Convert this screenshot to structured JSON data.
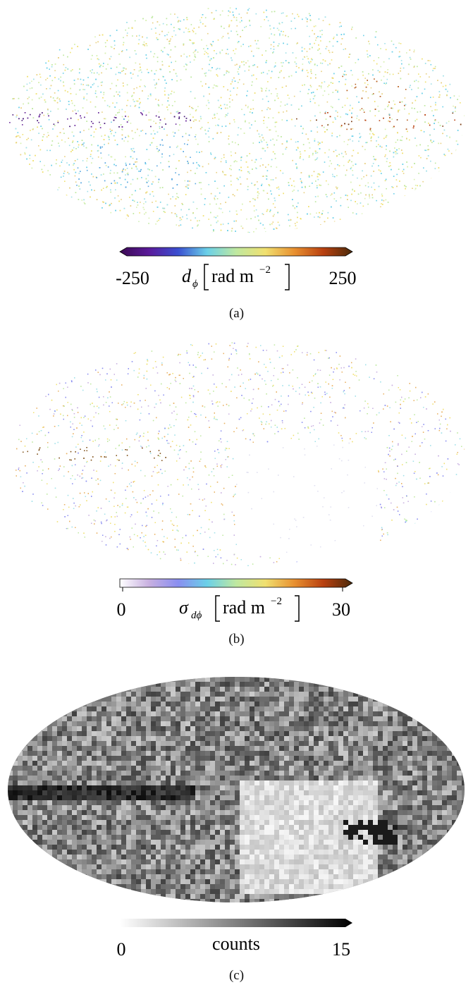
{
  "panels": [
    {
      "id": "a",
      "caption": "(a)",
      "colormap": "diverging",
      "colorbar": {
        "min_label": "-250",
        "max_label": "250",
        "symbol": "d",
        "subscript": "ϕ",
        "unit": "rad m",
        "unit_exp": "−2",
        "stops": [
          "#3b0a52",
          "#5a1a9a",
          "#3a4fd0",
          "#6ad0e8",
          "#bfe8a0",
          "#f0e070",
          "#e89030",
          "#b84010",
          "#4a2a0a"
        ],
        "extend": "both"
      }
    },
    {
      "id": "b",
      "caption": "(b)",
      "colormap": "sequential",
      "colorbar": {
        "min_label": "0",
        "max_label": "30",
        "symbol": "σ",
        "subscript": "dϕ",
        "unit": "rad m",
        "unit_exp": "−2",
        "stops": [
          "#ffffff",
          "#c8b0e0",
          "#8a8ef0",
          "#6ad0e8",
          "#bfe8a0",
          "#f0e070",
          "#e89030",
          "#b84010",
          "#4a2a0a"
        ],
        "extend": "max"
      }
    },
    {
      "id": "c",
      "caption": "(c)",
      "colormap": "gray",
      "colorbar": {
        "min_label": "0",
        "max_label": "15",
        "text": "counts",
        "stops": [
          "#ffffff",
          "#000000"
        ],
        "extend": "max"
      }
    }
  ]
}
